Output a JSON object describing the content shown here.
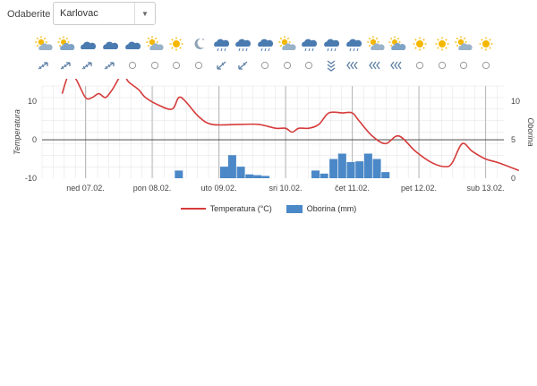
{
  "location": {
    "label": "Odaberite",
    "selected": "Karlovac"
  },
  "colors": {
    "temperature": "#d63b3b",
    "precipitation": "#4b88c7",
    "grid": "#e6e6e6",
    "dayline": "#b5b5b5",
    "zeroline": "#333333"
  },
  "weather_icons": [
    "partly-sunny",
    "partly-cloudy",
    "cloudy",
    "cloudy",
    "cloudy",
    "partly-sunny",
    "sunny",
    "clear-night",
    "cloudy-rain",
    "cloudy-rain",
    "cloudy-rain",
    "partly-sunny",
    "cloudy-rain",
    "cloudy-rain",
    "cloudy-rain",
    "partly-sunny",
    "partly-cloudy",
    "sunny",
    "sunny",
    "partly-sunny",
    "sunny"
  ],
  "wind_icons": [
    "wind-ne",
    "wind-ne",
    "wind-ne",
    "wind-ne",
    "calm",
    "calm",
    "calm",
    "calm",
    "wind-sw",
    "wind-sw",
    "calm",
    "calm",
    "calm",
    "wind-s",
    "wind-w",
    "wind-w",
    "wind-w",
    "calm",
    "calm",
    "calm",
    "calm"
  ],
  "chart_data": {
    "type": "line",
    "x": [
      "ned 07.02.",
      "pon 08.02.",
      "uto 09.02.",
      "sri 10.02.",
      "čet 11.02.",
      "pet 12.02.",
      "sub 13.02."
    ],
    "xlabel": "",
    "ylabel": "Temperatura",
    "y2label": "Oborina",
    "ylim": [
      -10,
      14
    ],
    "y2lim": [
      0,
      12
    ],
    "yticks": [
      -10,
      0,
      10
    ],
    "y2ticks": [
      0,
      5,
      10
    ],
    "grid": true,
    "legend_position": "bottom",
    "series": [
      {
        "name": "Temperatura (°C)",
        "type": "line",
        "points": [
          [
            -0.35,
            12
          ],
          [
            -0.25,
            17
          ],
          [
            -0.15,
            16
          ],
          [
            0,
            11
          ],
          [
            0.1,
            11
          ],
          [
            0.2,
            12
          ],
          [
            0.3,
            11
          ],
          [
            0.4,
            13
          ],
          [
            0.55,
            17
          ],
          [
            0.65,
            15
          ],
          [
            0.8,
            13
          ],
          [
            0.9,
            11
          ],
          [
            1.1,
            9
          ],
          [
            1.3,
            8
          ],
          [
            1.4,
            11
          ],
          [
            1.5,
            10
          ],
          [
            1.7,
            6
          ],
          [
            1.9,
            4
          ],
          [
            2.3,
            4
          ],
          [
            2.6,
            4
          ],
          [
            2.85,
            3
          ],
          [
            3,
            3
          ],
          [
            3.1,
            2
          ],
          [
            3.2,
            3
          ],
          [
            3.35,
            3
          ],
          [
            3.5,
            4
          ],
          [
            3.65,
            7
          ],
          [
            3.85,
            7
          ],
          [
            4.0,
            7
          ],
          [
            4.1,
            5
          ],
          [
            4.3,
            1
          ],
          [
            4.5,
            -1
          ],
          [
            4.7,
            1
          ],
          [
            4.95,
            -3
          ],
          [
            5.2,
            -6
          ],
          [
            5.4,
            -7
          ],
          [
            5.5,
            -6
          ],
          [
            5.65,
            -1
          ],
          [
            5.8,
            -3
          ],
          [
            6.0,
            -5
          ],
          [
            6.2,
            -6
          ],
          [
            6.5,
            -8
          ]
        ]
      },
      {
        "name": "Oborina (mm)",
        "type": "bar",
        "points": [
          [
            1.4,
            1
          ],
          [
            2.08,
            1.5
          ],
          [
            2.2,
            3
          ],
          [
            2.33,
            1.5
          ],
          [
            2.46,
            0.5
          ],
          [
            2.58,
            0.4
          ],
          [
            2.7,
            0.3
          ],
          [
            3.45,
            1
          ],
          [
            3.58,
            0.6
          ],
          [
            3.72,
            2.5
          ],
          [
            3.85,
            3.2
          ],
          [
            3.98,
            2.1
          ],
          [
            4.11,
            2.2
          ],
          [
            4.24,
            3.2
          ],
          [
            4.37,
            2.5
          ],
          [
            4.5,
            0.8
          ]
        ]
      }
    ]
  },
  "legend": {
    "temperature": "Temperatura (°C)",
    "precipitation": "Oborina (mm)"
  }
}
